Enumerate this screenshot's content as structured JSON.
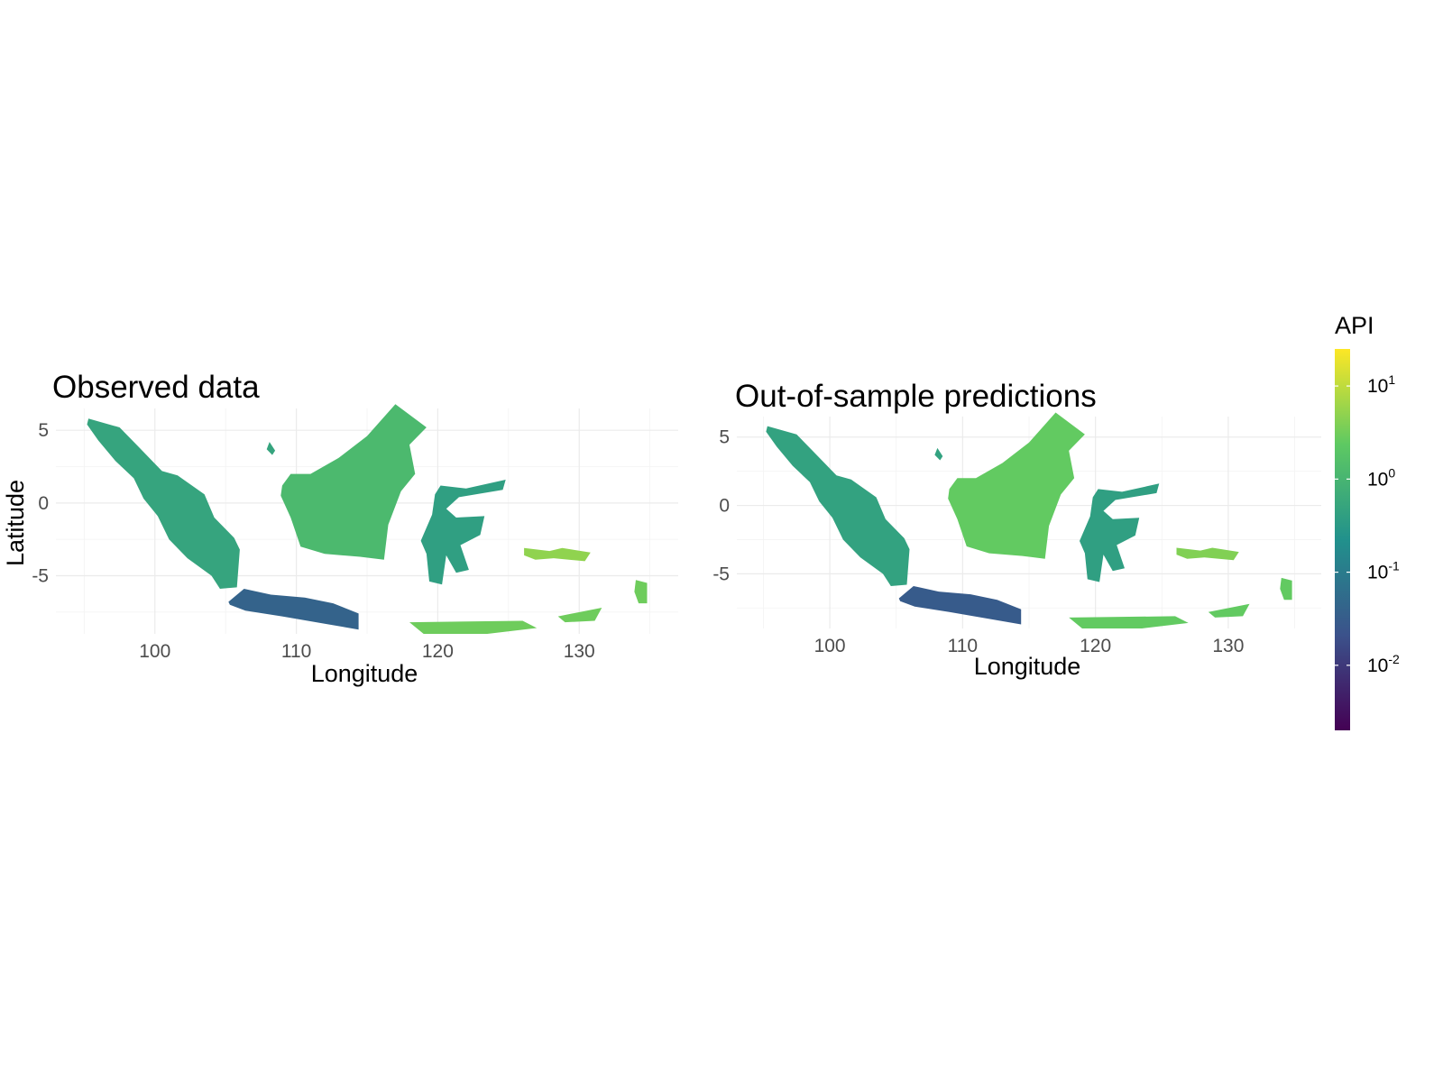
{
  "chart_data": [
    {
      "type": "heatmap",
      "title": "Observed data",
      "xlabel": "Longitude",
      "ylabel": "Latitude",
      "x_ticks": [
        "100",
        "110",
        "120",
        "130"
      ],
      "y_ticks": [
        "5",
        "0",
        "-5"
      ],
      "xlim": [
        93,
        137
      ],
      "ylim": [
        -9,
        6.5
      ],
      "grid": true,
      "regions": [
        {
          "name": "Sumatra",
          "api": 0.5
        },
        {
          "name": "Kalimantan",
          "api": 1.2
        },
        {
          "name": "Sulawesi",
          "api": 0.4
        },
        {
          "name": "Java",
          "api": 0.04
        },
        {
          "name": "Maluku",
          "api": 5
        },
        {
          "name": "Papua",
          "api": 3
        }
      ]
    },
    {
      "type": "heatmap",
      "title": "Out-of-sample predictions",
      "xlabel": "Longitude",
      "ylabel": "",
      "x_ticks": [
        "100",
        "110",
        "120",
        "130"
      ],
      "y_ticks": [
        "5",
        "0",
        "-5"
      ],
      "xlim": [
        93,
        137
      ],
      "ylim": [
        -9,
        6.5
      ],
      "grid": true,
      "regions": [
        {
          "name": "Sumatra",
          "api": 0.45
        },
        {
          "name": "Kalimantan",
          "api": 2.5
        },
        {
          "name": "Sulawesi",
          "api": 0.4
        },
        {
          "name": "Java",
          "api": 0.03
        },
        {
          "name": "Maluku",
          "api": 4
        },
        {
          "name": "Papua",
          "api": 2.5
        }
      ]
    }
  ],
  "legend": {
    "title": "API",
    "scale": "log10",
    "range": [
      0.002,
      25
    ],
    "ticks": [
      {
        "value": 10,
        "base": "10",
        "exp": "1"
      },
      {
        "value": 1,
        "base": "10",
        "exp": "0"
      },
      {
        "value": 0.1,
        "base": "10",
        "exp": "-1"
      },
      {
        "value": 0.01,
        "base": "10",
        "exp": "-2"
      }
    ],
    "colors": [
      "#440154",
      "#3b528b",
      "#21918c",
      "#5ec962",
      "#fde725"
    ]
  }
}
